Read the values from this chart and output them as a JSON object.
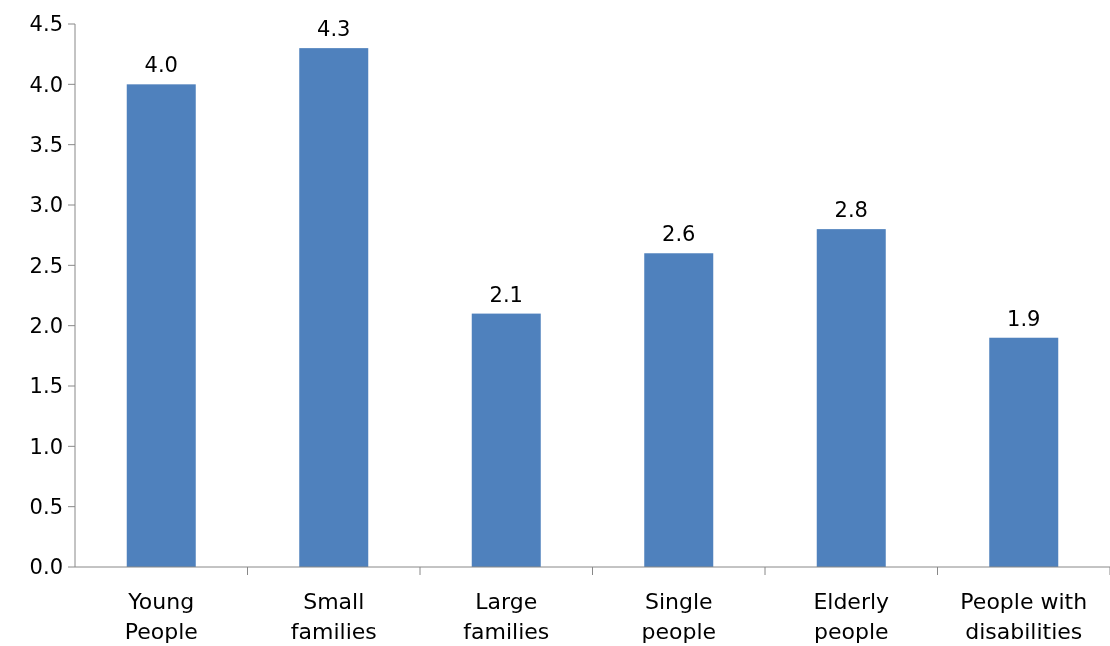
{
  "chart_data": {
    "type": "bar",
    "categories": [
      "Young People",
      "Small families",
      "Large families",
      "Single people",
      "Elderly people",
      "People with disabilities"
    ],
    "values": [
      4.0,
      4.3,
      2.1,
      2.6,
      2.8,
      1.9
    ],
    "color": "#4f81bd",
    "value_labels": [
      "4.0",
      "4.3",
      "2.1",
      "2.6",
      "2.8",
      "1.9"
    ],
    "ylim": [
      0,
      4.5
    ],
    "yticks": [
      {
        "value": 0,
        "label": "0.0"
      },
      {
        "value": 0.5,
        "label": "0.5"
      },
      {
        "value": 1,
        "label": "1.0"
      },
      {
        "value": 1.5,
        "label": "1.5"
      },
      {
        "value": 2,
        "label": "2.0"
      },
      {
        "value": 2.5,
        "label": "2.5"
      },
      {
        "value": 3,
        "label": "3.0"
      },
      {
        "value": 3.5,
        "label": "3.5"
      },
      {
        "value": 4,
        "label": "4.0"
      },
      {
        "value": 4.5,
        "label": "4.5"
      }
    ],
    "grid": false
  }
}
